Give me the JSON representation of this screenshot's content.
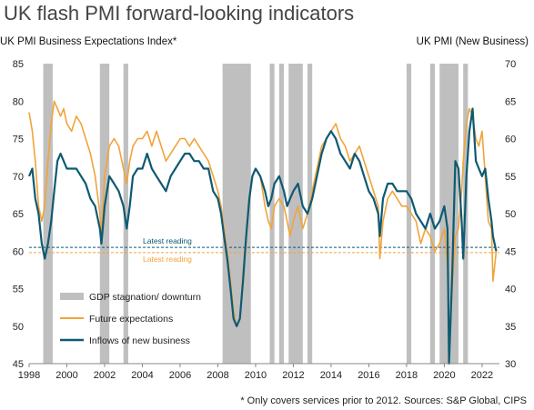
{
  "page": {
    "title": "UK flash PMI forward-looking indicators"
  },
  "chart_data": {
    "type": "line",
    "title": "UK flash PMI forward-looking indicators",
    "ylabel_left": "UK PMI Business Expectations Index*",
    "ylabel_right": "UK PMI (New Business)",
    "ylim_left": [
      45,
      85
    ],
    "ylim_right": [
      30,
      70
    ],
    "yticks_left": [
      "45",
      "50",
      "55",
      "60",
      "65",
      "70",
      "75",
      "80",
      "85"
    ],
    "yticks_right": [
      "30",
      "35",
      "40",
      "45",
      "50",
      "55",
      "60",
      "65",
      "70"
    ],
    "xlim": [
      1998,
      2022.92
    ],
    "xticks": [
      "1998",
      "2000",
      "2002",
      "2004",
      "2006",
      "2008",
      "2010",
      "2012",
      "2014",
      "2016",
      "2018",
      "2020",
      "2022"
    ],
    "grid": false,
    "legend_position": "lower-left",
    "legend": [
      "GDP stagnation/ downturn",
      "Future expectations",
      "Inflows of new business"
    ],
    "downturn_periods": [
      [
        1998.75,
        1999.25
      ],
      [
        2001.75,
        2002.25
      ],
      [
        2003.0,
        2003.25
      ],
      [
        2008.25,
        2009.75
      ],
      [
        2010.75,
        2011.0
      ],
      [
        2011.25,
        2011.5
      ],
      [
        2011.75,
        2012.5
      ],
      [
        2012.75,
        2013.0
      ],
      [
        2018.0,
        2018.25
      ],
      [
        2019.25,
        2019.5
      ],
      [
        2019.75,
        2020.75
      ],
      [
        2021.0,
        2021.25
      ]
    ],
    "series": [
      {
        "name": "Future expectations",
        "axis": "left",
        "color": "#F0A43A",
        "points": [
          [
            1998.0,
            78.5
          ],
          [
            1998.17,
            76
          ],
          [
            1998.33,
            72
          ],
          [
            1998.5,
            66
          ],
          [
            1998.67,
            64
          ],
          [
            1998.83,
            66
          ],
          [
            1999.0,
            72
          ],
          [
            1999.17,
            77
          ],
          [
            1999.33,
            80
          ],
          [
            1999.5,
            79
          ],
          [
            1999.67,
            78
          ],
          [
            1999.83,
            79
          ],
          [
            2000.0,
            77
          ],
          [
            2000.25,
            76
          ],
          [
            2000.5,
            78
          ],
          [
            2000.75,
            77
          ],
          [
            2001.0,
            75
          ],
          [
            2001.25,
            73
          ],
          [
            2001.5,
            70
          ],
          [
            2001.75,
            65
          ],
          [
            2001.83,
            62
          ],
          [
            2002.0,
            70
          ],
          [
            2002.25,
            74
          ],
          [
            2002.5,
            75
          ],
          [
            2002.75,
            74
          ],
          [
            2003.0,
            71
          ],
          [
            2003.17,
            69
          ],
          [
            2003.33,
            72
          ],
          [
            2003.5,
            74
          ],
          [
            2003.75,
            75
          ],
          [
            2004.0,
            75
          ],
          [
            2004.25,
            76
          ],
          [
            2004.5,
            74
          ],
          [
            2004.75,
            76
          ],
          [
            2005.0,
            74
          ],
          [
            2005.25,
            72
          ],
          [
            2005.5,
            73
          ],
          [
            2005.75,
            74
          ],
          [
            2006.0,
            75
          ],
          [
            2006.25,
            75
          ],
          [
            2006.5,
            74
          ],
          [
            2006.75,
            75
          ],
          [
            2007.0,
            74
          ],
          [
            2007.25,
            73
          ],
          [
            2007.5,
            72
          ],
          [
            2007.75,
            70
          ],
          [
            2008.0,
            68
          ],
          [
            2008.17,
            66
          ],
          [
            2008.33,
            63
          ],
          [
            2008.5,
            60
          ],
          [
            2008.67,
            56
          ],
          [
            2008.83,
            52
          ],
          [
            2009.0,
            50
          ],
          [
            2009.17,
            51
          ],
          [
            2009.33,
            57
          ],
          [
            2009.5,
            62
          ],
          [
            2009.67,
            67
          ],
          [
            2009.83,
            70
          ],
          [
            2010.0,
            71
          ],
          [
            2010.25,
            70
          ],
          [
            2010.5,
            66
          ],
          [
            2010.67,
            64
          ],
          [
            2010.83,
            63
          ],
          [
            2011.0,
            66
          ],
          [
            2011.25,
            67
          ],
          [
            2011.5,
            66
          ],
          [
            2011.67,
            64
          ],
          [
            2011.83,
            62
          ],
          [
            2012.0,
            64
          ],
          [
            2012.25,
            66
          ],
          [
            2012.5,
            63
          ],
          [
            2012.75,
            65
          ],
          [
            2013.0,
            68
          ],
          [
            2013.25,
            71
          ],
          [
            2013.5,
            74
          ],
          [
            2013.75,
            75
          ],
          [
            2014.0,
            76
          ],
          [
            2014.25,
            77
          ],
          [
            2014.5,
            75
          ],
          [
            2014.75,
            74
          ],
          [
            2015.0,
            72
          ],
          [
            2015.25,
            73
          ],
          [
            2015.5,
            74
          ],
          [
            2015.75,
            72
          ],
          [
            2016.0,
            70
          ],
          [
            2016.25,
            68
          ],
          [
            2016.5,
            66
          ],
          [
            2016.58,
            59
          ],
          [
            2016.75,
            64
          ],
          [
            2017.0,
            67
          ],
          [
            2017.25,
            68
          ],
          [
            2017.5,
            67
          ],
          [
            2017.75,
            66
          ],
          [
            2018.0,
            66
          ],
          [
            2018.25,
            65
          ],
          [
            2018.5,
            64
          ],
          [
            2018.75,
            61
          ],
          [
            2019.0,
            63
          ],
          [
            2019.25,
            62
          ],
          [
            2019.5,
            60
          ],
          [
            2019.75,
            61
          ],
          [
            2020.0,
            63
          ],
          [
            2020.17,
            58
          ],
          [
            2020.25,
            48
          ],
          [
            2020.42,
            55
          ],
          [
            2020.58,
            62
          ],
          [
            2020.75,
            63
          ],
          [
            2020.92,
            68
          ],
          [
            2021.0,
            72
          ],
          [
            2021.17,
            77
          ],
          [
            2021.33,
            79
          ],
          [
            2021.5,
            78
          ],
          [
            2021.67,
            75
          ],
          [
            2021.83,
            74
          ],
          [
            2022.0,
            76
          ],
          [
            2022.17,
            70
          ],
          [
            2022.33,
            64
          ],
          [
            2022.5,
            63
          ],
          [
            2022.58,
            56
          ],
          [
            2022.75,
            60
          ]
        ]
      },
      {
        "name": "Inflows of new business",
        "axis": "right",
        "color": "#0E5A73",
        "points": [
          [
            1998.0,
            55
          ],
          [
            1998.17,
            56
          ],
          [
            1998.33,
            52
          ],
          [
            1998.5,
            50
          ],
          [
            1998.67,
            46
          ],
          [
            1998.83,
            44
          ],
          [
            1999.0,
            46
          ],
          [
            1999.17,
            49
          ],
          [
            1999.33,
            53
          ],
          [
            1999.5,
            57
          ],
          [
            1999.67,
            58
          ],
          [
            1999.83,
            57
          ],
          [
            2000.0,
            56
          ],
          [
            2000.25,
            56
          ],
          [
            2000.5,
            56
          ],
          [
            2000.75,
            55
          ],
          [
            2001.0,
            54
          ],
          [
            2001.25,
            52
          ],
          [
            2001.5,
            51
          ],
          [
            2001.75,
            48
          ],
          [
            2001.83,
            46
          ],
          [
            2002.0,
            51
          ],
          [
            2002.25,
            55
          ],
          [
            2002.5,
            54
          ],
          [
            2002.75,
            53
          ],
          [
            2003.0,
            51
          ],
          [
            2003.17,
            48
          ],
          [
            2003.33,
            51
          ],
          [
            2003.5,
            55
          ],
          [
            2003.75,
            56
          ],
          [
            2004.0,
            56
          ],
          [
            2004.25,
            58
          ],
          [
            2004.5,
            56
          ],
          [
            2004.75,
            55
          ],
          [
            2005.0,
            54
          ],
          [
            2005.25,
            53
          ],
          [
            2005.5,
            55
          ],
          [
            2005.75,
            56
          ],
          [
            2006.0,
            57
          ],
          [
            2006.25,
            58
          ],
          [
            2006.5,
            58
          ],
          [
            2006.75,
            57
          ],
          [
            2007.0,
            57
          ],
          [
            2007.25,
            56
          ],
          [
            2007.5,
            56
          ],
          [
            2007.75,
            53
          ],
          [
            2008.0,
            52
          ],
          [
            2008.17,
            50
          ],
          [
            2008.33,
            47
          ],
          [
            2008.5,
            44
          ],
          [
            2008.67,
            40
          ],
          [
            2008.83,
            36
          ],
          [
            2009.0,
            35
          ],
          [
            2009.17,
            36
          ],
          [
            2009.33,
            41
          ],
          [
            2009.5,
            47
          ],
          [
            2009.67,
            52
          ],
          [
            2009.83,
            55
          ],
          [
            2010.0,
            56
          ],
          [
            2010.25,
            55
          ],
          [
            2010.5,
            53
          ],
          [
            2010.67,
            51
          ],
          [
            2010.83,
            52
          ],
          [
            2011.0,
            54
          ],
          [
            2011.25,
            55
          ],
          [
            2011.5,
            53
          ],
          [
            2011.67,
            51
          ],
          [
            2011.83,
            52
          ],
          [
            2012.0,
            53
          ],
          [
            2012.25,
            54
          ],
          [
            2012.5,
            51
          ],
          [
            2012.75,
            50
          ],
          [
            2013.0,
            52
          ],
          [
            2013.25,
            55
          ],
          [
            2013.5,
            58
          ],
          [
            2013.75,
            60
          ],
          [
            2014.0,
            61
          ],
          [
            2014.25,
            60
          ],
          [
            2014.5,
            58
          ],
          [
            2014.75,
            57
          ],
          [
            2015.0,
            56
          ],
          [
            2015.25,
            58
          ],
          [
            2015.5,
            57
          ],
          [
            2015.75,
            55
          ],
          [
            2016.0,
            53
          ],
          [
            2016.25,
            52
          ],
          [
            2016.5,
            50
          ],
          [
            2016.58,
            47
          ],
          [
            2016.75,
            52
          ],
          [
            2017.0,
            54
          ],
          [
            2017.25,
            54
          ],
          [
            2017.5,
            53
          ],
          [
            2017.75,
            53
          ],
          [
            2018.0,
            53
          ],
          [
            2018.25,
            52
          ],
          [
            2018.5,
            50
          ],
          [
            2018.75,
            49
          ],
          [
            2019.0,
            48
          ],
          [
            2019.25,
            50
          ],
          [
            2019.5,
            48
          ],
          [
            2019.75,
            49
          ],
          [
            2020.0,
            51
          ],
          [
            2020.17,
            48
          ],
          [
            2020.25,
            30
          ],
          [
            2020.42,
            42
          ],
          [
            2020.58,
            57
          ],
          [
            2020.75,
            56
          ],
          [
            2020.92,
            49
          ],
          [
            2021.0,
            44
          ],
          [
            2021.17,
            55
          ],
          [
            2021.33,
            61
          ],
          [
            2021.5,
            64
          ],
          [
            2021.67,
            57
          ],
          [
            2021.83,
            56
          ],
          [
            2022.0,
            55
          ],
          [
            2022.17,
            56
          ],
          [
            2022.33,
            52
          ],
          [
            2022.5,
            49
          ],
          [
            2022.58,
            47
          ],
          [
            2022.75,
            45
          ]
        ]
      }
    ],
    "latest_reading_label": "Latest reading",
    "latest_reading_levels": [
      {
        "series": "Inflows of new business",
        "axis": "left",
        "value": 60.5
      },
      {
        "series": "Future expectations",
        "axis": "left",
        "value": 59.8
      }
    ]
  },
  "footnote": "* Only covers services prior to 2012. Sources: S&P Global, CIPS",
  "colors": {
    "expectations": "#F0A43A",
    "new_business": "#0E5A73",
    "downturn": "#BFBFBF"
  }
}
